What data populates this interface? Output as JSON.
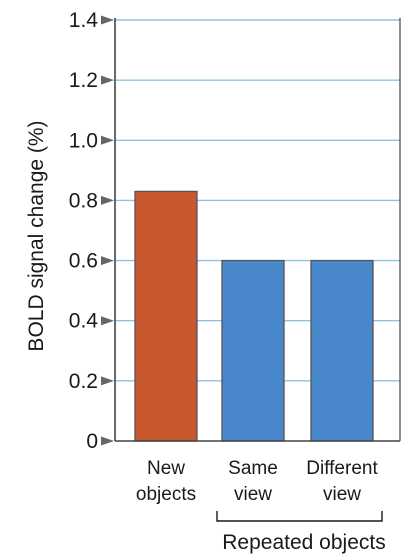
{
  "chart_data": {
    "type": "bar",
    "categories": [
      [
        "New",
        "objects"
      ],
      [
        "Same",
        "view"
      ],
      [
        "Different",
        "view"
      ]
    ],
    "values": [
      0.83,
      0.6,
      0.6
    ],
    "bar_colors": [
      "#c8582e",
      "#4a88cc",
      "#4a88cc"
    ],
    "bar_edge_color": "#555555",
    "title": "",
    "xlabel": "",
    "ylabel": "BOLD signal change (%)",
    "ylim": [
      0,
      1.4
    ],
    "yticks": [
      0,
      0.2,
      0.4,
      0.6,
      0.8,
      1.0,
      1.2,
      1.4
    ],
    "ytick_labels": [
      "0",
      "0.2",
      "0.4",
      "0.6",
      "0.8",
      "1.0",
      "1.2",
      "1.4"
    ],
    "grid": true,
    "grid_color": "#8fc3e3",
    "axis_color": "#444444",
    "tick_marker_color": "#666666",
    "group_bracket": {
      "label": "Repeated objects",
      "covers": [
        1,
        2
      ]
    }
  }
}
